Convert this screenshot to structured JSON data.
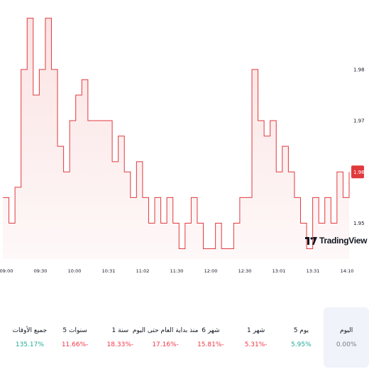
{
  "chart_data": {
    "type": "area",
    "title": "",
    "xlabel": "",
    "ylabel": "",
    "y_ticks": [
      "1.98",
      "1.97",
      "1.95"
    ],
    "ylim": [
      1.943,
      1.993
    ],
    "x_ticks": [
      "09:00",
      "09:30",
      "10:00",
      "10:31",
      "11:02",
      "11:30",
      "12:00",
      "12:30",
      "13:01",
      "13:31",
      "14:10"
    ],
    "current_price": "1.96",
    "series": [
      {
        "values": [
          1.955,
          1.95,
          1.957,
          1.98,
          1.99,
          1.975,
          1.98,
          1.99,
          1.98,
          1.965,
          1.96,
          1.97,
          1.975,
          1.978,
          1.97,
          1.97,
          1.97,
          1.97,
          1.962,
          1.967,
          1.96,
          1.955,
          1.962,
          1.955,
          1.95,
          1.955,
          1.95,
          1.955,
          1.95,
          1.945,
          1.95,
          1.955,
          1.95,
          1.945,
          1.945,
          1.95,
          1.945,
          1.945,
          1.95,
          1.955,
          1.955,
          1.98,
          1.97,
          1.967,
          1.97,
          1.96,
          1.965,
          1.96,
          1.955,
          1.95,
          1.945,
          1.955,
          1.95,
          1.955,
          1.95,
          1.96,
          1.955,
          1.96
        ]
      }
    ],
    "line_color": "#e03a3e",
    "fill_color": "#fbe3e3",
    "tag_color": "#e03a3e"
  },
  "brand": {
    "name": "TradingView"
  },
  "periods": [
    {
      "label": "اليوم",
      "value": "0.00%",
      "color": "#787b86",
      "active": true
    },
    {
      "label": "5 يوم",
      "value": "5.95%",
      "color": "#22ab94",
      "active": false
    },
    {
      "label": "1 شهر",
      "value": "5.31%-",
      "color": "#f23645",
      "active": false
    },
    {
      "label": "6 شهر",
      "value": "15.81%-",
      "color": "#f23645",
      "active": false
    },
    {
      "label": "منذ بداية العام حتى اليوم",
      "value": "17.16%-",
      "color": "#f23645",
      "active": false
    },
    {
      "label": "1 سنة",
      "value": "18.33%-",
      "color": "#f23645",
      "active": false
    },
    {
      "label": "5 سنوات",
      "value": "11.66%-",
      "color": "#f23645",
      "active": false
    },
    {
      "label": "جميع الأوقات",
      "value": "135.17%",
      "color": "#22ab94",
      "active": false
    }
  ]
}
